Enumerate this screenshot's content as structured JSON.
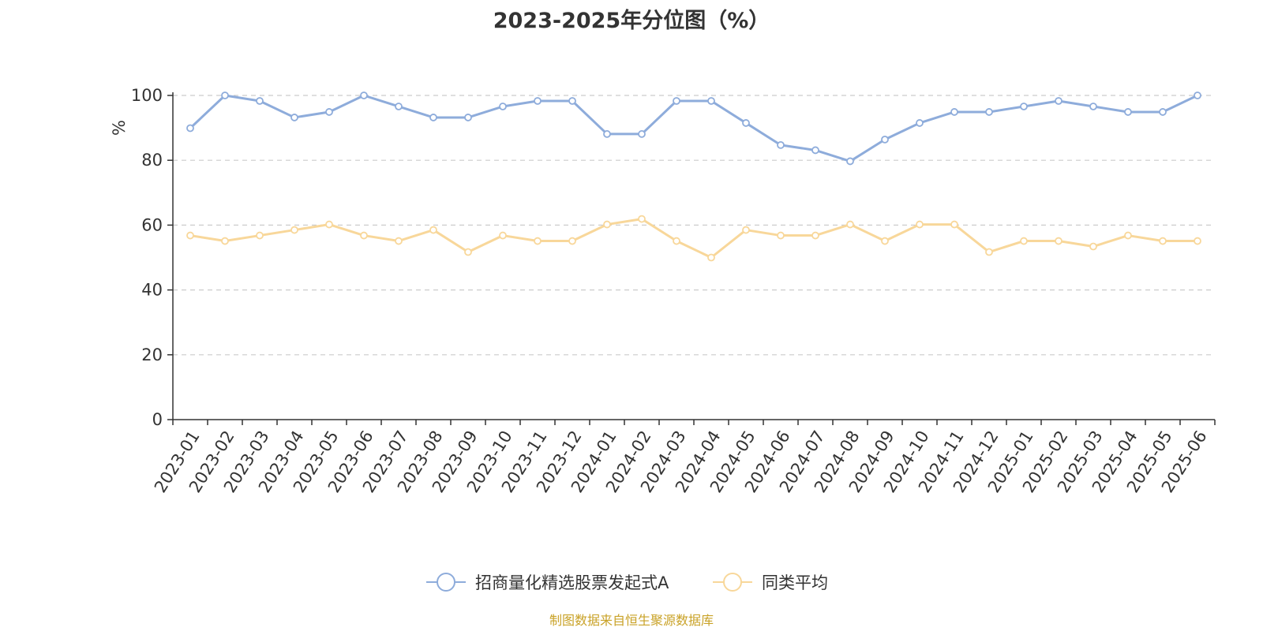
{
  "chart_data": {
    "type": "line",
    "title": "2023-2025年分位图（%）",
    "ylabel": "%",
    "xlabel": "",
    "ylim": [
      0,
      100
    ],
    "yticks": [
      0,
      20,
      40,
      60,
      80,
      100
    ],
    "grid": true,
    "legend_position": "bottom",
    "categories": [
      "2023-01",
      "2023-02",
      "2023-03",
      "2023-04",
      "2023-05",
      "2023-06",
      "2023-07",
      "2023-08",
      "2023-09",
      "2023-10",
      "2023-11",
      "2023-12",
      "2024-01",
      "2024-02",
      "2024-03",
      "2024-04",
      "2024-05",
      "2024-06",
      "2024-07",
      "2024-08",
      "2024-09",
      "2024-10",
      "2024-11",
      "2024-12",
      "2025-01",
      "2025-02",
      "2025-03",
      "2025-04",
      "2025-05",
      "2025-06"
    ],
    "series": [
      {
        "name": "招商量化精选股票发起式A",
        "color": "#8eacdb",
        "values": [
          89.9,
          100,
          98.3,
          93.2,
          94.9,
          100,
          96.6,
          93.2,
          93.2,
          96.6,
          98.3,
          98.3,
          88.1,
          88.1,
          98.3,
          98.3,
          91.5,
          84.7,
          83.1,
          79.7,
          86.4,
          91.5,
          94.9,
          94.9,
          96.6,
          98.3,
          96.6,
          94.9,
          94.9,
          100
        ]
      },
      {
        "name": "同类平均",
        "color": "#f8d79a",
        "values": [
          56.8,
          55.1,
          56.8,
          58.5,
          60.2,
          56.8,
          55.1,
          58.5,
          51.7,
          56.8,
          55.1,
          55.1,
          60.2,
          61.9,
          55.1,
          50.0,
          58.5,
          56.8,
          56.8,
          60.2,
          55.1,
          60.2,
          60.2,
          51.7,
          55.1,
          55.1,
          53.4,
          56.8,
          55.1,
          55.1
        ]
      }
    ]
  },
  "source_note": "制图数据来自恒生聚源数据库",
  "colors": {
    "axis": "#333333",
    "grid": "#cccccc",
    "ylabel": "#ff0000",
    "source": "#c9a227"
  }
}
